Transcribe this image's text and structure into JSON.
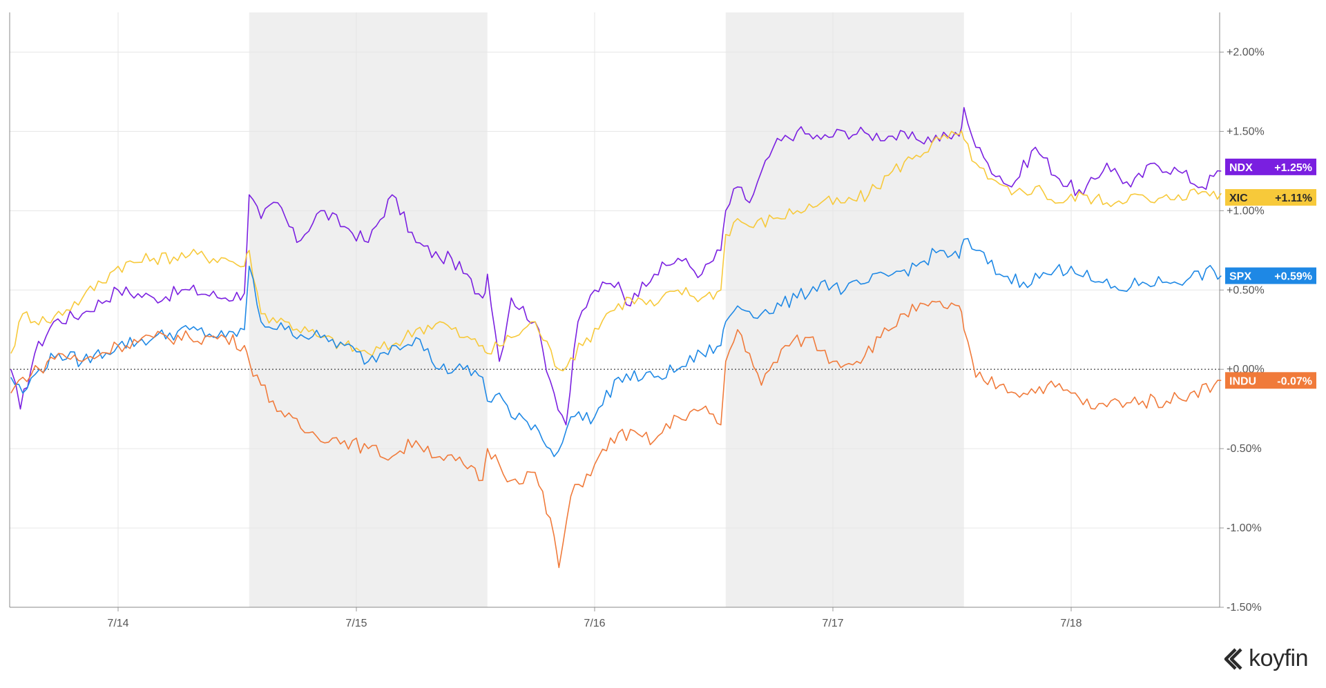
{
  "brand": {
    "name": "koyfin"
  },
  "chart_data": {
    "type": "line",
    "x_tick_labels": [
      "7/14",
      "7/15",
      "7/16",
      "7/17",
      "7/18"
    ],
    "y_tick_labels": [
      "+2.00%",
      "+1.50%",
      "+1.00%",
      "+0.50%",
      "+0.00%",
      "-0.50%",
      "-1.00%",
      "-1.50%"
    ],
    "y_ticks": [
      2.0,
      1.5,
      1.0,
      0.5,
      0.0,
      -0.5,
      -1.0,
      -1.5
    ],
    "ylim": [
      -1.5,
      2.25
    ],
    "xlim": [
      0,
      5.08
    ],
    "zero_line": true,
    "grid": true,
    "shaded_sessions": [
      [
        1,
        2
      ],
      [
        3,
        4
      ]
    ],
    "colors": {
      "NDX": "#7a1fe0",
      "XIC": "#f7c93a",
      "SPX": "#1e88e5",
      "INDU": "#f07a3a"
    },
    "series": [
      {
        "name": "NDX",
        "color": "#7a1fe0",
        "label_value": "+1.25%",
        "x": [
          0,
          0.04,
          0.1,
          0.18,
          0.3,
          0.45,
          0.6,
          0.75,
          0.9,
          0.98,
          1.0,
          1.05,
          1.12,
          1.2,
          1.3,
          1.4,
          1.5,
          1.6,
          1.7,
          1.8,
          1.85,
          1.98,
          2.0,
          2.05,
          2.1,
          2.2,
          2.28,
          2.33,
          2.38,
          2.45,
          2.55,
          2.6,
          2.65,
          2.7,
          2.8,
          2.9,
          2.98,
          3.0,
          3.05,
          3.1,
          3.2,
          3.3,
          3.4,
          3.5,
          3.6,
          3.7,
          3.8,
          3.98,
          4.0,
          4.05,
          4.1,
          4.2,
          4.3,
          4.4,
          4.5,
          4.6,
          4.7,
          4.8,
          4.9,
          5.0,
          5.08
        ],
        "y": [
          0.0,
          -0.25,
          0.1,
          0.3,
          0.35,
          0.5,
          0.45,
          0.5,
          0.45,
          0.48,
          1.1,
          0.95,
          1.05,
          0.8,
          1.0,
          0.9,
          0.8,
          1.1,
          0.8,
          0.7,
          0.7,
          0.45,
          0.6,
          0.05,
          0.45,
          0.3,
          -0.15,
          -0.35,
          0.3,
          0.5,
          0.55,
          0.4,
          0.55,
          0.6,
          0.7,
          0.6,
          0.75,
          1.0,
          1.15,
          1.05,
          1.4,
          1.5,
          1.45,
          1.5,
          1.48,
          1.47,
          1.45,
          1.47,
          1.65,
          1.4,
          1.3,
          1.15,
          1.4,
          1.2,
          1.1,
          1.3,
          1.15,
          1.3,
          1.25,
          1.15,
          1.25
        ]
      },
      {
        "name": "XIC",
        "color": "#f7c93a",
        "label_value": "+1.11%",
        "x": [
          0,
          0.05,
          0.15,
          0.3,
          0.45,
          0.6,
          0.75,
          0.9,
          0.98,
          1.0,
          1.05,
          1.15,
          1.3,
          1.4,
          1.5,
          1.6,
          1.7,
          1.8,
          1.9,
          1.98,
          2.0,
          2.1,
          2.2,
          2.3,
          2.4,
          2.5,
          2.6,
          2.7,
          2.8,
          2.9,
          2.98,
          3.0,
          3.05,
          3.1,
          3.2,
          3.3,
          3.4,
          3.5,
          3.6,
          3.7,
          3.8,
          3.9,
          3.98,
          4.0,
          4.05,
          4.1,
          4.2,
          4.3,
          4.4,
          4.5,
          4.6,
          4.7,
          4.8,
          4.9,
          5.0,
          5.08
        ],
        "y": [
          0.1,
          0.35,
          0.3,
          0.45,
          0.65,
          0.7,
          0.72,
          0.7,
          0.65,
          0.75,
          0.35,
          0.3,
          0.2,
          0.15,
          0.1,
          0.15,
          0.25,
          0.3,
          0.2,
          0.15,
          0.1,
          0.2,
          0.3,
          0.0,
          0.15,
          0.35,
          0.45,
          0.4,
          0.5,
          0.45,
          0.5,
          0.85,
          0.95,
          0.9,
          0.95,
          1.0,
          1.05,
          1.05,
          1.1,
          1.25,
          1.35,
          1.45,
          1.48,
          1.45,
          1.3,
          1.2,
          1.1,
          1.15,
          1.05,
          1.1,
          1.05,
          1.1,
          1.05,
          1.1,
          1.12,
          1.11
        ]
      },
      {
        "name": "SPX",
        "color": "#1e88e5",
        "label_value": "+0.59%",
        "x": [
          0,
          0.05,
          0.12,
          0.2,
          0.3,
          0.45,
          0.6,
          0.75,
          0.9,
          0.98,
          1.0,
          1.05,
          1.15,
          1.3,
          1.4,
          1.5,
          1.6,
          1.7,
          1.8,
          1.9,
          1.98,
          2.0,
          2.05,
          2.1,
          2.2,
          2.28,
          2.35,
          2.45,
          2.55,
          2.7,
          2.8,
          2.9,
          2.98,
          3.0,
          3.05,
          3.15,
          3.3,
          3.4,
          3.5,
          3.6,
          3.7,
          3.8,
          3.9,
          3.98,
          4.0,
          4.05,
          4.15,
          4.25,
          4.35,
          4.45,
          4.55,
          4.65,
          4.75,
          4.85,
          4.95,
          5.05,
          5.08
        ],
        "y": [
          -0.05,
          -0.15,
          0.0,
          0.1,
          0.05,
          0.15,
          0.2,
          0.25,
          0.2,
          0.25,
          0.65,
          0.3,
          0.25,
          0.2,
          0.15,
          0.05,
          0.15,
          0.2,
          0.0,
          0.0,
          -0.05,
          -0.2,
          -0.15,
          -0.3,
          -0.35,
          -0.55,
          -0.3,
          -0.3,
          -0.05,
          -0.05,
          0.0,
          0.1,
          0.15,
          0.3,
          0.4,
          0.35,
          0.45,
          0.55,
          0.5,
          0.55,
          0.6,
          0.65,
          0.75,
          0.7,
          0.82,
          0.75,
          0.6,
          0.55,
          0.6,
          0.65,
          0.55,
          0.5,
          0.55,
          0.55,
          0.58,
          0.62,
          0.59
        ]
      },
      {
        "name": "INDU",
        "color": "#f07a3a",
        "label_value": "-0.07%",
        "x": [
          0,
          0.05,
          0.12,
          0.2,
          0.3,
          0.45,
          0.6,
          0.75,
          0.9,
          0.98,
          1.0,
          1.05,
          1.15,
          1.25,
          1.4,
          1.5,
          1.6,
          1.7,
          1.8,
          1.9,
          1.98,
          2.0,
          2.05,
          2.1,
          2.2,
          2.28,
          2.3,
          2.35,
          2.45,
          2.55,
          2.7,
          2.8,
          2.9,
          2.98,
          3.0,
          3.05,
          3.1,
          3.15,
          3.25,
          3.35,
          3.45,
          3.55,
          3.65,
          3.75,
          3.85,
          3.98,
          4.0,
          4.05,
          4.15,
          4.25,
          4.35,
          4.45,
          4.55,
          4.65,
          4.75,
          4.85,
          4.95,
          5.05,
          5.08
        ],
        "y": [
          -0.15,
          -0.05,
          0.0,
          0.1,
          0.05,
          0.15,
          0.2,
          0.2,
          0.2,
          0.15,
          0.05,
          -0.1,
          -0.3,
          -0.4,
          -0.45,
          -0.5,
          -0.55,
          -0.45,
          -0.55,
          -0.6,
          -0.7,
          -0.5,
          -0.6,
          -0.7,
          -0.65,
          -1.05,
          -1.25,
          -0.8,
          -0.6,
          -0.4,
          -0.45,
          -0.3,
          -0.25,
          -0.35,
          0.05,
          0.25,
          0.1,
          -0.1,
          0.15,
          0.2,
          0.05,
          0.05,
          0.2,
          0.35,
          0.4,
          0.4,
          0.25,
          -0.05,
          -0.1,
          -0.15,
          -0.1,
          -0.15,
          -0.25,
          -0.2,
          -0.2,
          -0.2,
          -0.15,
          -0.1,
          -0.07
        ]
      }
    ]
  }
}
